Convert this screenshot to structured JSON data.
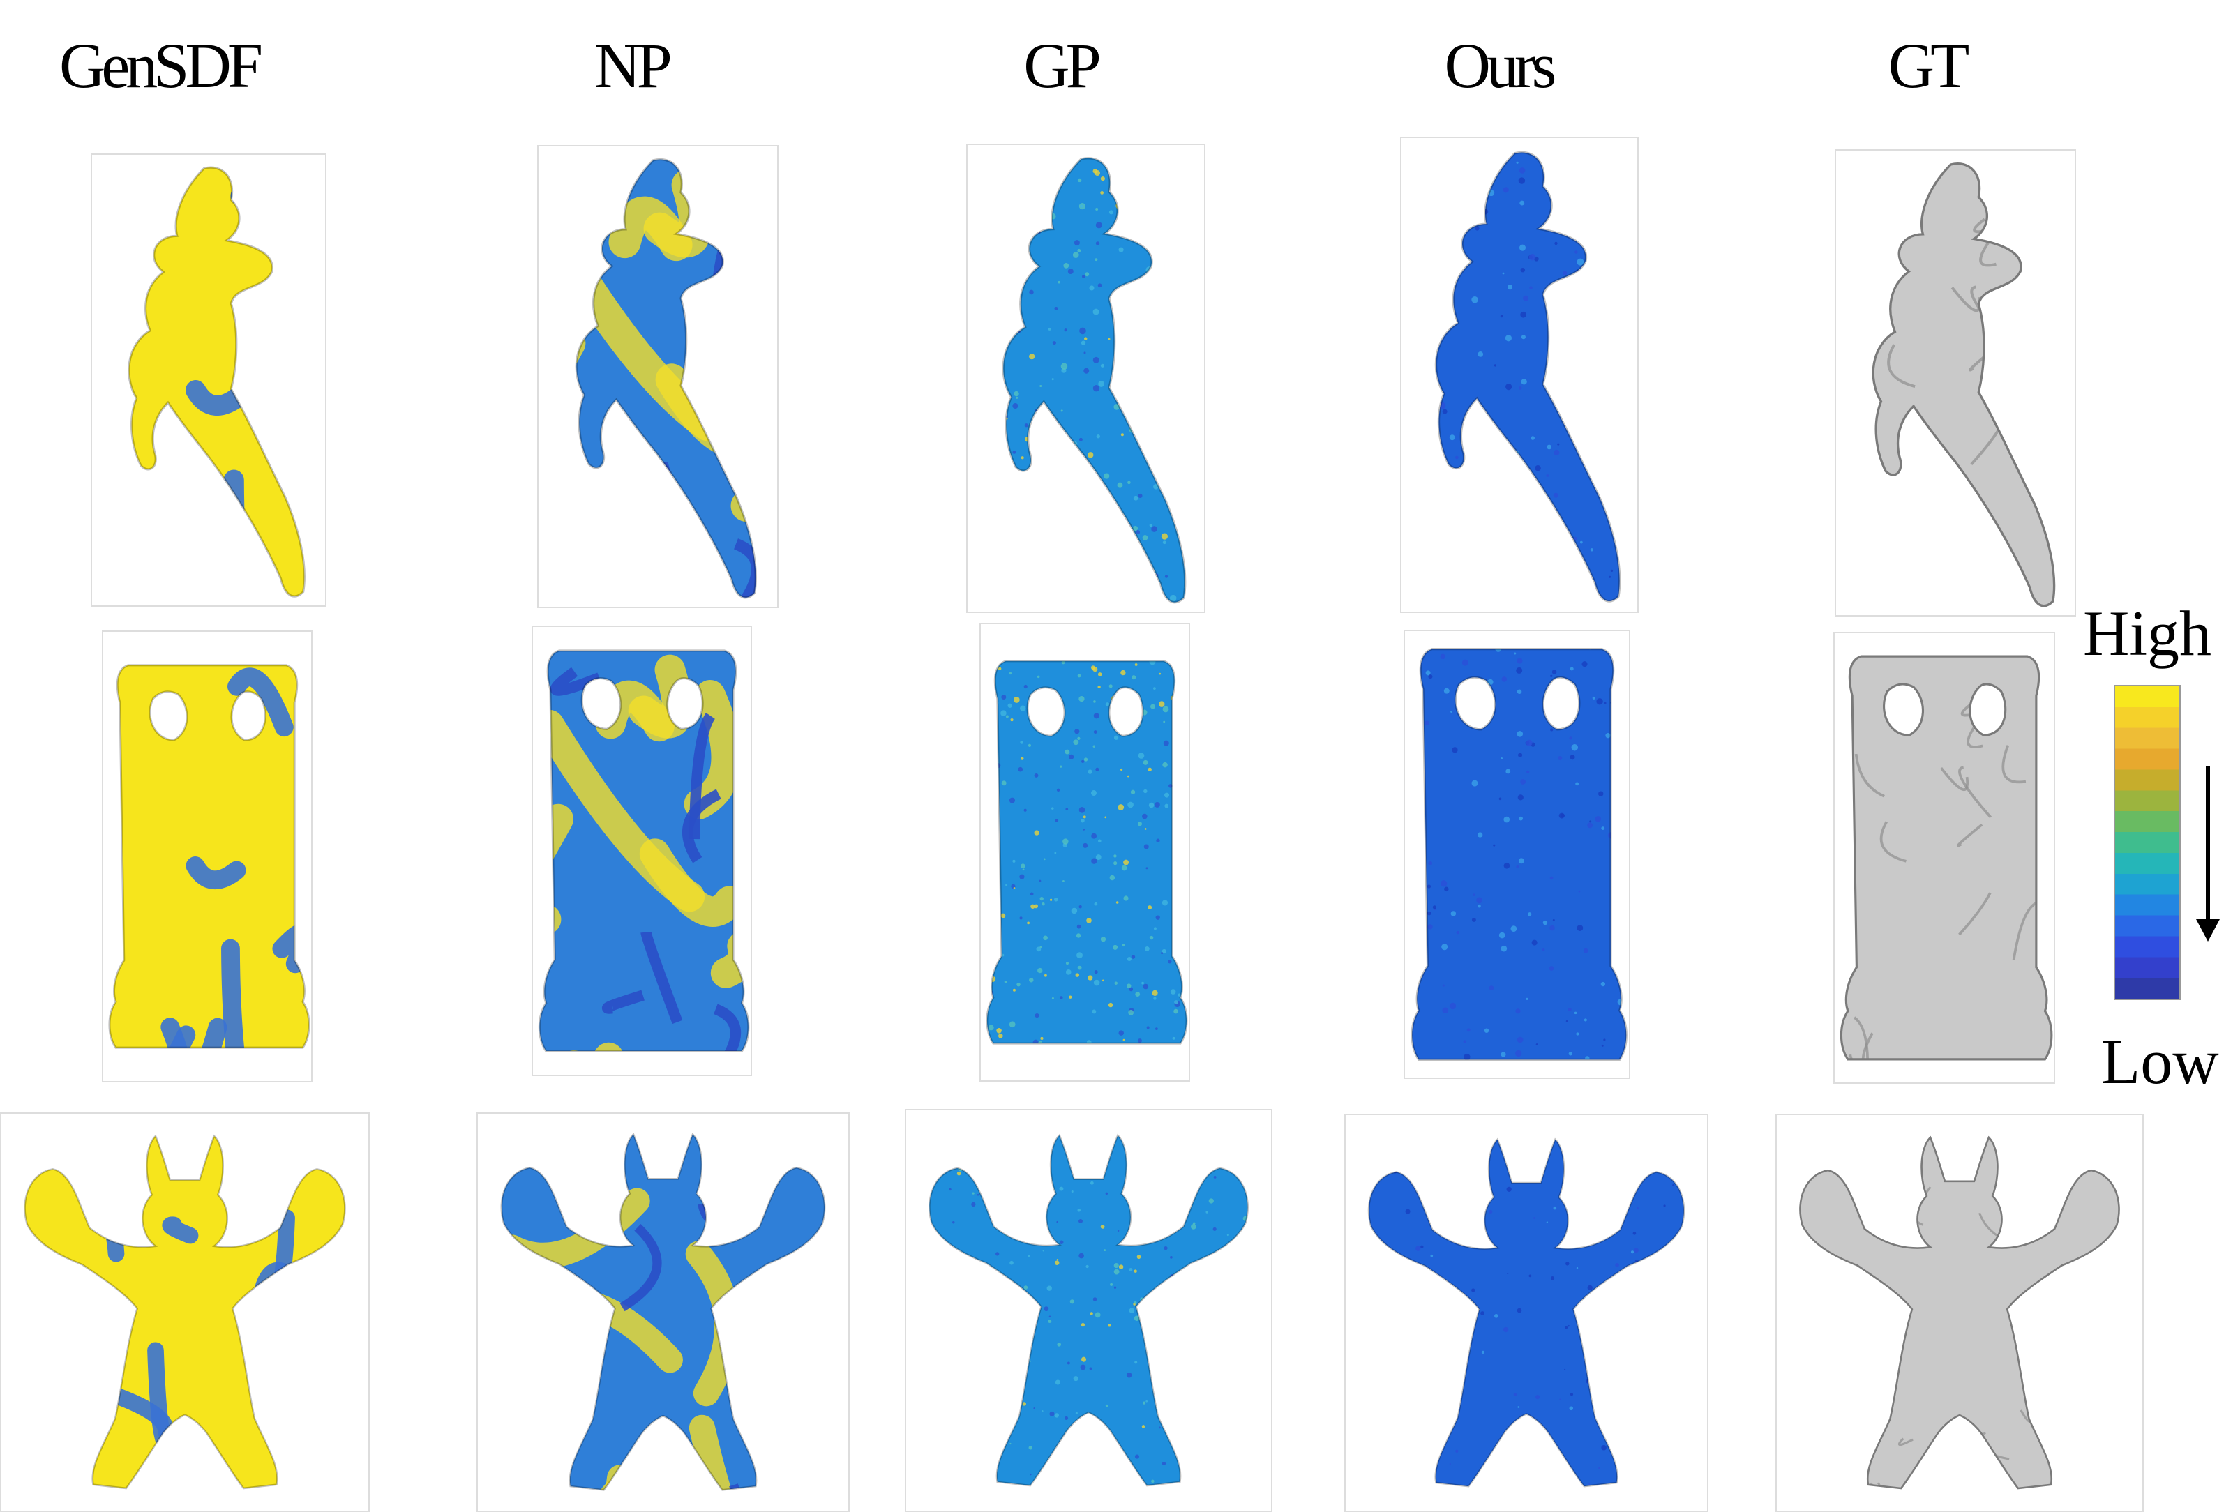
{
  "columns": [
    {
      "label": "GenSDF",
      "scheme": "yellow"
    },
    {
      "label": "NP",
      "scheme": "mixed"
    },
    {
      "label": "GP",
      "scheme": "speckle"
    },
    {
      "label": "Ours",
      "scheme": "blue"
    },
    {
      "label": "GT",
      "scheme": "gray"
    }
  ],
  "rows": [
    "crouching-statue",
    "buddha-statue",
    "armadillo"
  ],
  "legend": {
    "high_label": "High",
    "low_label": "Low",
    "colors": [
      "#f8e81e",
      "#f5d12a",
      "#eebd36",
      "#e7a92e",
      "#c6ad2c",
      "#9cb43e",
      "#69bb62",
      "#3fbd8e",
      "#25b6b8",
      "#1ea3d2",
      "#2286e2",
      "#2a68e6",
      "#2f4ee0",
      "#3340cc",
      "#2e3aa8"
    ]
  }
}
